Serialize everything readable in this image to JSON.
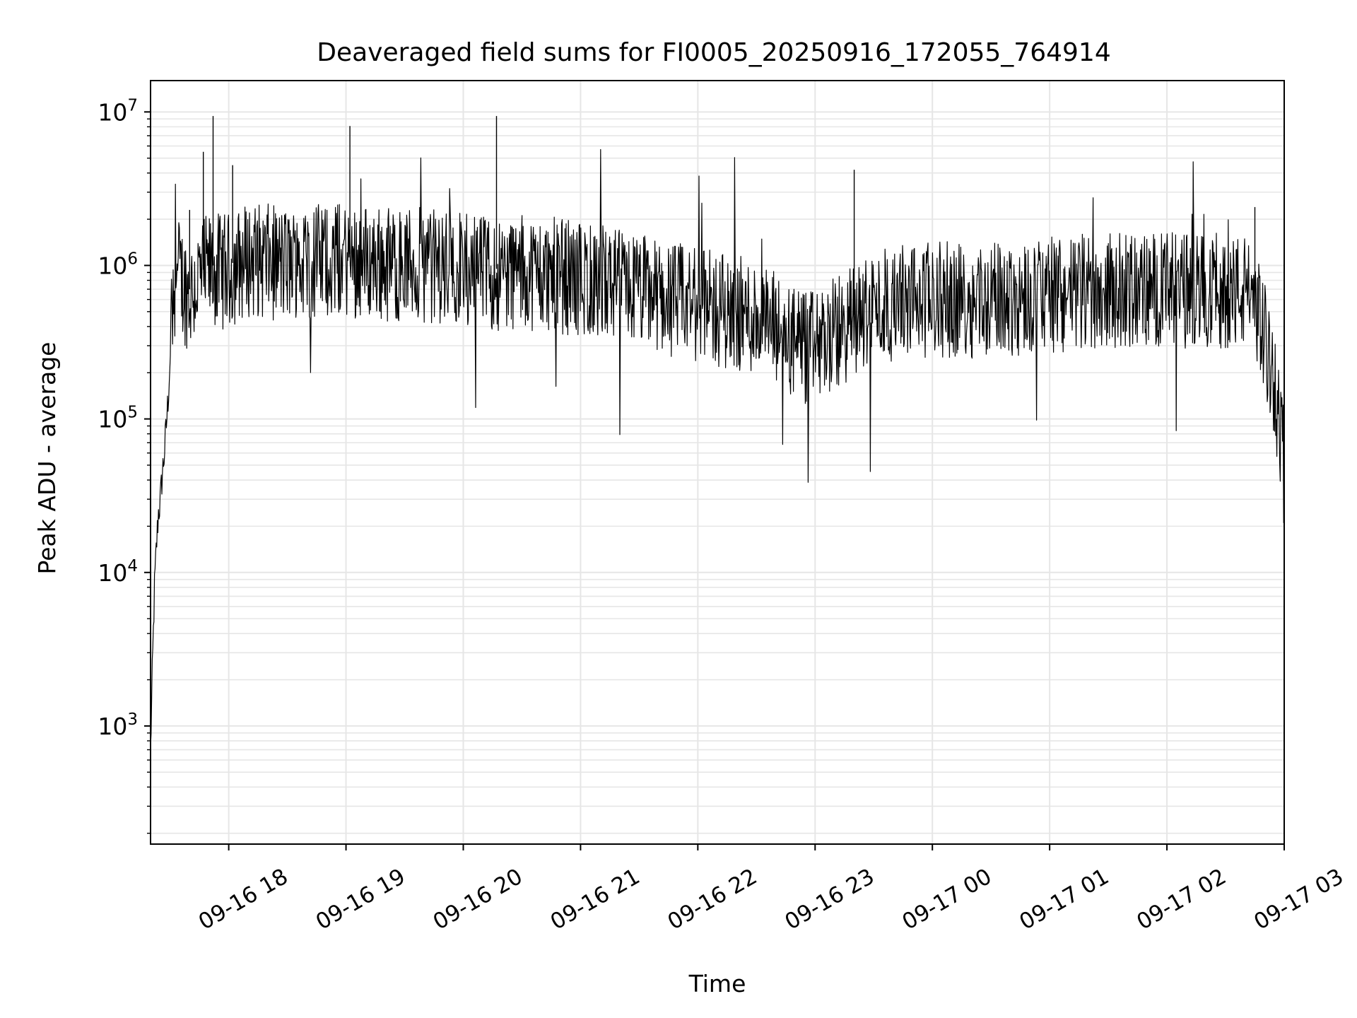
{
  "chart_data": {
    "type": "line",
    "title": "Deaveraged field sums for FI0005_20250916_172055_764914",
    "xlabel": "Time",
    "ylabel": "Peak ADU - average",
    "yscale": "log",
    "ylim": [
      170,
      16000000
    ],
    "xlim": [
      "09-16 17:20",
      "09-17 03:00"
    ],
    "grid": true,
    "line_color": "#000000",
    "grid_color": "#e6e6e6",
    "x_ticks": [
      {
        "t": "09-16 18:00",
        "label": "09-16 18"
      },
      {
        "t": "09-16 19:00",
        "label": "09-16 19"
      },
      {
        "t": "09-16 20:00",
        "label": "09-16 20"
      },
      {
        "t": "09-16 21:00",
        "label": "09-16 21"
      },
      {
        "t": "09-16 22:00",
        "label": "09-16 22"
      },
      {
        "t": "09-16 23:00",
        "label": "09-16 23"
      },
      {
        "t": "09-17 00:00",
        "label": "09-17 00"
      },
      {
        "t": "09-17 01:00",
        "label": "09-17 01"
      },
      {
        "t": "09-17 02:00",
        "label": "09-17 02"
      },
      {
        "t": "09-17 03:00",
        "label": "09-17 03"
      }
    ],
    "y_ticks": [
      {
        "value": 1000,
        "base": "10",
        "exp": "3"
      },
      {
        "value": 10000,
        "base": "10",
        "exp": "4"
      },
      {
        "value": 100000,
        "base": "10",
        "exp": "5"
      },
      {
        "value": 1000000,
        "base": "10",
        "exp": "6"
      },
      {
        "value": 10000000,
        "base": "10",
        "exp": "7"
      }
    ],
    "series": [
      {
        "x": [
          "09-16 17:20",
          "09-16 17:21",
          "09-16 17:22",
          "09-16 17:23",
          "09-16 17:24",
          "09-16 17:25",
          "09-16 17:26",
          "09-16 17:27",
          "09-16 17:28",
          "09-16 17:29",
          "09-16 17:30",
          "09-16 17:31",
          "09-16 17:32",
          "09-16 17:33",
          "09-16 17:35",
          "09-16 17:37",
          "09-16 17:40",
          "09-16 17:45",
          "09-16 17:50",
          "09-16 17:55",
          "09-16 18:00",
          "09-16 18:05",
          "09-16 18:10",
          "09-16 18:30",
          "09-16 18:50",
          "09-16 19:00",
          "09-16 19:30",
          "09-16 20:00",
          "09-16 20:17",
          "09-16 20:30",
          "09-16 21:00",
          "09-16 21:30",
          "09-16 22:00",
          "09-16 22:30",
          "09-16 22:55",
          "09-16 23:10",
          "09-16 23:30",
          "09-17 00:00",
          "09-17 00:30",
          "09-17 01:00",
          "09-17 01:30",
          "09-17 02:00",
          "09-17 02:30",
          "09-17 02:45",
          "09-17 02:50",
          "09-17 02:55",
          "09-17 03:00"
        ],
        "y": [
          700,
          2500,
          8000,
          15000,
          25000,
          30000,
          45000,
          60000,
          90000,
          140000,
          250000,
          600000,
          850000,
          900000,
          950000,
          800000,
          700000,
          900000,
          1000000,
          1000000,
          1000000,
          1100000,
          1200000,
          1100000,
          1200000,
          1200000,
          1100000,
          1050000,
          950000,
          1000000,
          900000,
          750000,
          600000,
          500000,
          300000,
          380000,
          600000,
          650000,
          650000,
          700000,
          750000,
          750000,
          750000,
          700000,
          350000,
          200000,
          50000
        ]
      }
    ]
  }
}
